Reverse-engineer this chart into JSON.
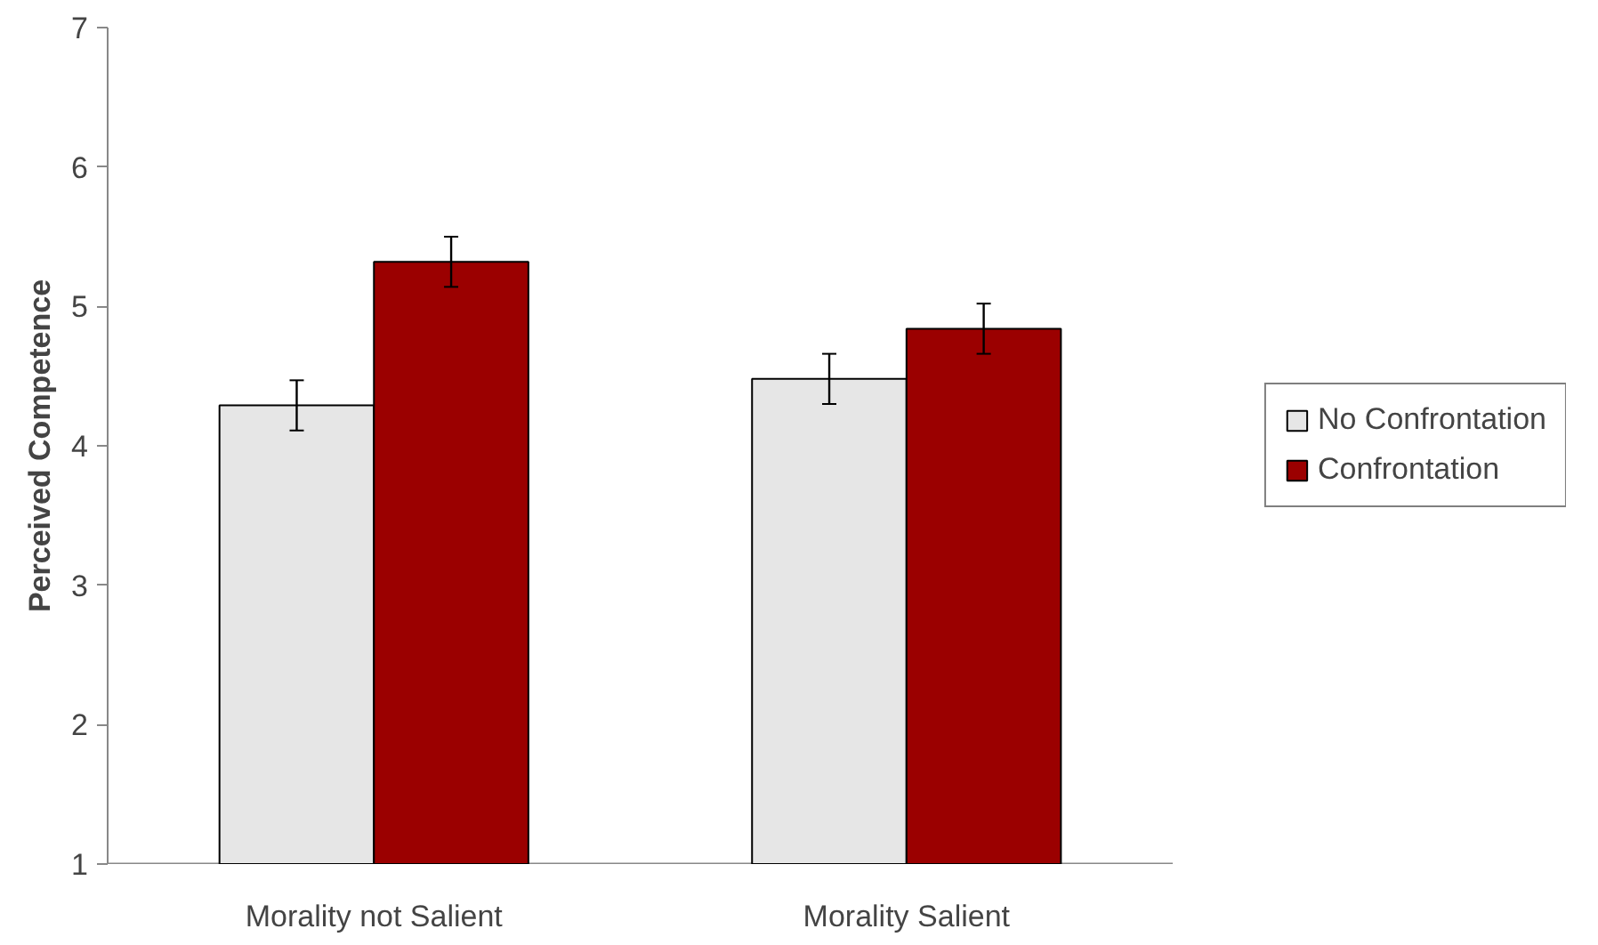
{
  "chart_data": {
    "type": "bar",
    "ylabel": "Perceived Competence",
    "categories": [
      "Morality not Salient",
      "Morality Salient"
    ],
    "series": [
      {
        "name": "No Confrontation",
        "color": "#e6e6e6",
        "values": [
          4.29,
          4.48
        ],
        "errors": [
          0.18,
          0.18
        ]
      },
      {
        "name": "Confrontation",
        "color": "#9b0000",
        "values": [
          5.32,
          4.84
        ],
        "errors": [
          0.18,
          0.18
        ]
      }
    ],
    "ylim": [
      1,
      7
    ],
    "yticks": [
      1,
      2,
      3,
      4,
      5,
      6,
      7
    ],
    "grid": false,
    "legend": "right"
  }
}
